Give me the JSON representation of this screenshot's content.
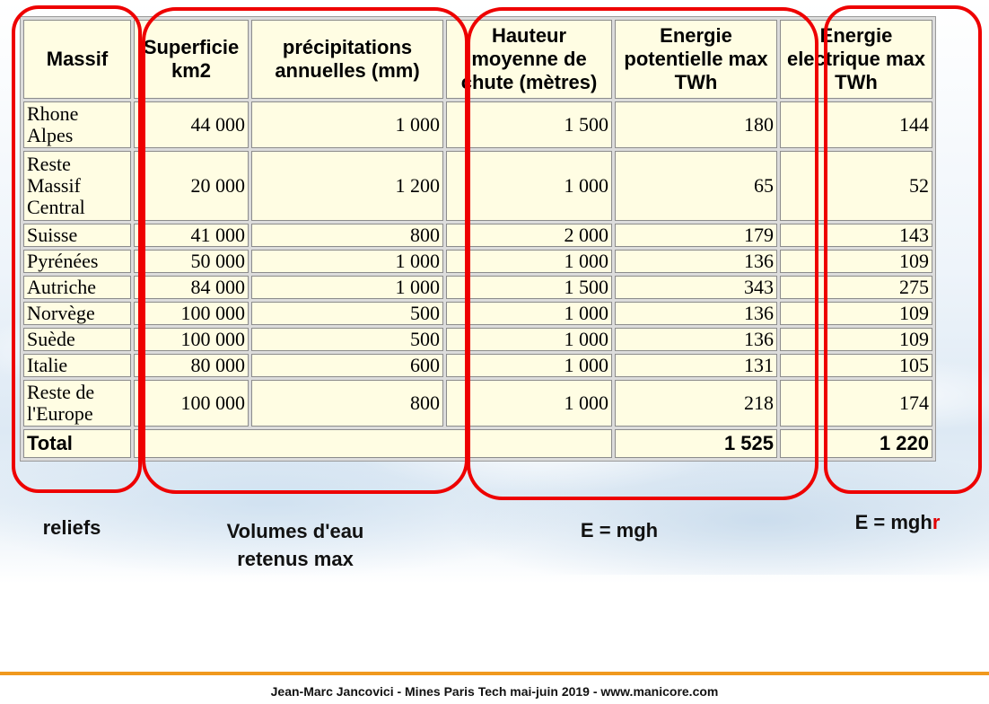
{
  "table": {
    "headers": [
      "Massif",
      "Superficie km2",
      "précipitations annuelles (mm)",
      "Hauteur moyenne de chute (mètres)",
      "Energie potentielle max TWh",
      "Energie electrique max TWh"
    ],
    "rows": [
      [
        "Rhone Alpes",
        "44 000",
        "1 000",
        "1 500",
        "180",
        "144"
      ],
      [
        "Reste Massif Central",
        "20 000",
        "1 200",
        "1 000",
        "65",
        "52"
      ],
      [
        "Suisse",
        "41 000",
        "800",
        "2 000",
        "179",
        "143"
      ],
      [
        "Pyrénées",
        "50 000",
        "1 000",
        "1 000",
        "136",
        "109"
      ],
      [
        "Autriche",
        "84 000",
        "1 000",
        "1 500",
        "343",
        "275"
      ],
      [
        "Norvège",
        "100 000",
        "500",
        "1 000",
        "136",
        "109"
      ],
      [
        "Suède",
        "100 000",
        "500",
        "1 000",
        "136",
        "109"
      ],
      [
        "Italie",
        "80 000",
        "600",
        "1 000",
        "131",
        "105"
      ],
      [
        "Reste de l'Europe",
        "100 000",
        "800",
        "1 000",
        "218",
        "174"
      ]
    ],
    "total": [
      "Total",
      "",
      "",
      "",
      "1 525",
      "1 220"
    ]
  },
  "annotations": {
    "reliefs": "reliefs",
    "volumes_line1": "Volumes d'eau",
    "volumes_line2": "retenus max",
    "emgh": "E = mgh",
    "emghr_prefix": "E = mgh",
    "emghr_suffix": "r"
  },
  "colors": {
    "highlight": "#ee0000",
    "cell_background": "#fffde3",
    "footer_bar": "#f0991e"
  },
  "footer": "Jean-Marc Jancovici - Mines Paris Tech mai-juin 2019 - www.manicore.com"
}
